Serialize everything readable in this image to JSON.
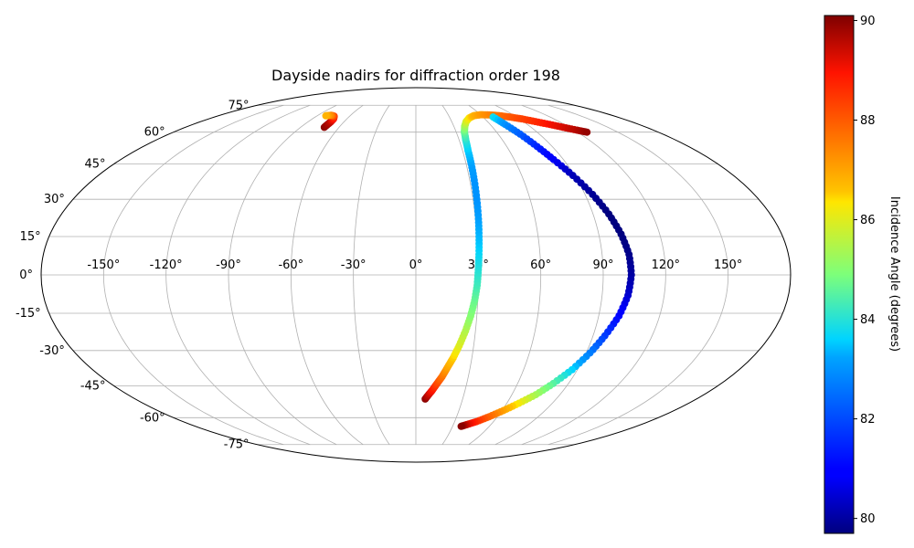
{
  "chart_data": {
    "type": "scatter",
    "projection": "mollweide",
    "title": "Dayside nadirs for diffraction order 198",
    "grid": true,
    "lon_ticks": [
      -150,
      -120,
      -90,
      -60,
      -30,
      0,
      30,
      60,
      90,
      120,
      150
    ],
    "lon_tick_labels": [
      "-150°",
      "-120°",
      "-90°",
      "-60°",
      "-30°",
      "0°",
      "30°",
      "60°",
      "90°",
      "120°",
      "150°"
    ],
    "lat_ticks": [
      -75,
      -60,
      -45,
      -30,
      -15,
      0,
      15,
      30,
      45,
      60,
      75
    ],
    "lat_tick_labels": [
      "-75°",
      "-60°",
      "-45°",
      "-30°",
      "-15°",
      "0°",
      "15°",
      "30°",
      "45°",
      "60°",
      "75°"
    ],
    "colorbar": {
      "label": "Incidence Angle (degrees)",
      "colormap": "jet",
      "range": [
        79.7,
        90.1
      ],
      "ticks": [
        80,
        82,
        84,
        86,
        88,
        90
      ],
      "tick_labels": [
        "80",
        "82",
        "84",
        "86",
        "88",
        "90"
      ]
    },
    "series": [
      {
        "points": [
          {
            "lon": -71.5,
            "lat": 62.5,
            "c": 90.0
          },
          {
            "lon": -71.2,
            "lat": 64.0,
            "c": 89.8
          },
          {
            "lon": -71.0,
            "lat": 65.5,
            "c": 89.5
          },
          {
            "lon": -71.5,
            "lat": 67.0,
            "c": 89.0
          },
          {
            "lon": -74.0,
            "lat": 68.5,
            "c": 88.5
          },
          {
            "lon": -78.0,
            "lat": 69.0,
            "c": 87.5
          },
          {
            "lon": -82.0,
            "lat": 68.7,
            "c": 86.8
          }
        ]
      },
      {
        "points": [
          {
            "lon": 6.0,
            "lat": -51.0,
            "c": 90.0
          },
          {
            "lon": 8.0,
            "lat": -49.0,
            "c": 89.5
          },
          {
            "lon": 10.0,
            "lat": -47.0,
            "c": 89.0
          },
          {
            "lon": 12.5,
            "lat": -44.0,
            "c": 88.3
          },
          {
            "lon": 15.0,
            "lat": -41.0,
            "c": 87.7
          },
          {
            "lon": 17.5,
            "lat": -37.0,
            "c": 87.0
          },
          {
            "lon": 20.0,
            "lat": -33.0,
            "c": 86.5
          },
          {
            "lon": 22.5,
            "lat": -28.0,
            "c": 86.0
          },
          {
            "lon": 25.0,
            "lat": -22.0,
            "c": 85.5
          },
          {
            "lon": 27.0,
            "lat": -16.0,
            "c": 85.0
          },
          {
            "lon": 28.5,
            "lat": -10.0,
            "c": 84.7
          },
          {
            "lon": 29.5,
            "lat": -4.0,
            "c": 84.3
          },
          {
            "lon": 30.0,
            "lat": 2.0,
            "c": 84.0
          },
          {
            "lon": 30.5,
            "lat": 8.0,
            "c": 83.7
          },
          {
            "lon": 31.0,
            "lat": 15.0,
            "c": 83.4
          },
          {
            "lon": 31.5,
            "lat": 22.0,
            "c": 83.2
          },
          {
            "lon": 32.0,
            "lat": 30.0,
            "c": 83.0
          },
          {
            "lon": 32.5,
            "lat": 38.0,
            "c": 83.0
          },
          {
            "lon": 33.0,
            "lat": 45.0,
            "c": 83.2
          },
          {
            "lon": 33.5,
            "lat": 51.0,
            "c": 83.5
          },
          {
            "lon": 34.5,
            "lat": 56.0,
            "c": 84.0
          },
          {
            "lon": 36.0,
            "lat": 60.0,
            "c": 84.6
          },
          {
            "lon": 38.5,
            "lat": 63.0,
            "c": 85.2
          },
          {
            "lon": 42.0,
            "lat": 65.5,
            "c": 85.8
          },
          {
            "lon": 47.0,
            "lat": 67.5,
            "c": 86.3
          },
          {
            "lon": 53.0,
            "lat": 68.8,
            "c": 86.8
          },
          {
            "lon": 60.0,
            "lat": 69.3,
            "c": 87.1
          },
          {
            "lon": 68.0,
            "lat": 69.2,
            "c": 87.4
          },
          {
            "lon": 76.0,
            "lat": 68.8,
            "c": 87.7
          },
          {
            "lon": 84.0,
            "lat": 68.0,
            "c": 88.0
          },
          {
            "lon": 92.0,
            "lat": 67.0,
            "c": 88.3
          },
          {
            "lon": 100.0,
            "lat": 65.5,
            "c": 88.6
          },
          {
            "lon": 108.0,
            "lat": 64.0,
            "c": 89.0
          },
          {
            "lon": 115.0,
            "lat": 62.5,
            "c": 89.3
          },
          {
            "lon": 122.0,
            "lat": 61.0,
            "c": 89.6
          },
          {
            "lon": 127.0,
            "lat": 60.0,
            "c": 89.9
          }
        ]
      },
      {
        "points": [
          {
            "lon": 69.0,
            "lat": 68.0,
            "c": 83.8
          },
          {
            "lon": 72.0,
            "lat": 64.0,
            "c": 83.0
          },
          {
            "lon": 76.0,
            "lat": 59.0,
            "c": 82.3
          },
          {
            "lon": 80.0,
            "lat": 53.0,
            "c": 81.5
          },
          {
            "lon": 84.0,
            "lat": 47.0,
            "c": 80.8
          },
          {
            "lon": 89.0,
            "lat": 40.0,
            "c": 80.2
          },
          {
            "lon": 94.0,
            "lat": 32.0,
            "c": 79.9
          },
          {
            "lon": 98.0,
            "lat": 24.0,
            "c": 79.7
          },
          {
            "lon": 101.0,
            "lat": 16.0,
            "c": 79.7
          },
          {
            "lon": 103.0,
            "lat": 8.0,
            "c": 79.8
          },
          {
            "lon": 103.5,
            "lat": 0.0,
            "c": 80.0
          },
          {
            "lon": 102.5,
            "lat": -8.0,
            "c": 80.4
          },
          {
            "lon": 100.0,
            "lat": -16.0,
            "c": 81.0
          },
          {
            "lon": 96.0,
            "lat": -24.0,
            "c": 81.8
          },
          {
            "lon": 92.0,
            "lat": -31.0,
            "c": 82.7
          },
          {
            "lon": 87.0,
            "lat": -38.0,
            "c": 83.6
          },
          {
            "lon": 81.0,
            "lat": -44.0,
            "c": 84.5
          },
          {
            "lon": 75.0,
            "lat": -49.0,
            "c": 85.3
          },
          {
            "lon": 68.0,
            "lat": -53.0,
            "c": 86.2
          },
          {
            "lon": 61.0,
            "lat": -56.5,
            "c": 87.0
          },
          {
            "lon": 54.0,
            "lat": -59.5,
            "c": 87.8
          },
          {
            "lon": 47.0,
            "lat": -62.0,
            "c": 88.6
          },
          {
            "lon": 41.0,
            "lat": -63.5,
            "c": 89.3
          },
          {
            "lon": 37.0,
            "lat": -64.5,
            "c": 90.0
          }
        ]
      }
    ]
  }
}
